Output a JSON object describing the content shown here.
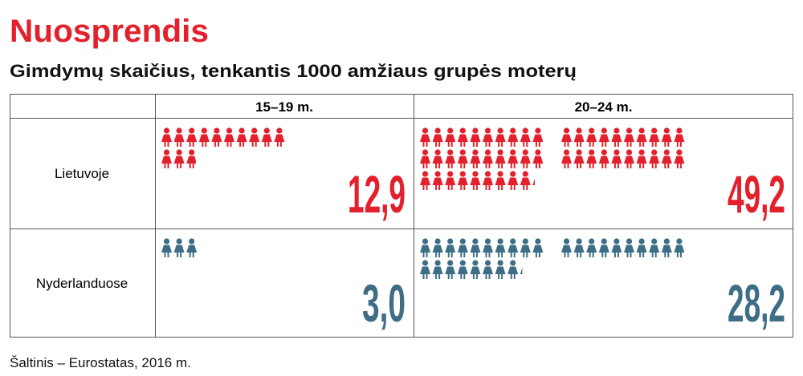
{
  "title": "Nuosprendis",
  "subtitle": "Gimdymų skaičius, tenkantis 1000 amžiaus grupės moterų",
  "table": {
    "columns": [
      "15–19 m.",
      "20–24 m."
    ],
    "rows": [
      {
        "label": "Lietuvoje",
        "color": "#e3202b",
        "values": [
          12.9,
          49.2
        ],
        "value_labels": [
          "12,9",
          "49,2"
        ]
      },
      {
        "label": "Nyderlanduose",
        "color": "#3d6e85",
        "values": [
          3.0,
          28.2
        ],
        "value_labels": [
          "3,0",
          "28,2"
        ]
      }
    ]
  },
  "source": "Šaltinis – Eurostatas, 2016 m."
}
